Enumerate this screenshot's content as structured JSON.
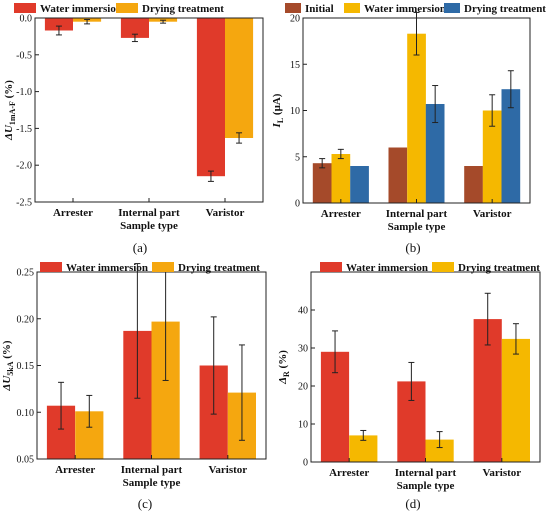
{
  "chart_data": [
    {
      "type": "bar",
      "panel": "a",
      "caption": "(a)",
      "categories": [
        "Arrester",
        "Internal part",
        "Varistor"
      ],
      "series": [
        {
          "name": "Water immersion",
          "color": "#e03a2a",
          "values": [
            -0.17,
            -0.27,
            -2.15
          ],
          "errors": [
            0.06,
            0.05,
            0.07
          ]
        },
        {
          "name": "Drying treatment",
          "color": "#f5a70f",
          "values": [
            -0.05,
            -0.05,
            -1.63
          ],
          "errors": [
            0.03,
            0.02,
            0.07
          ]
        }
      ],
      "xlabel": "Sample type",
      "ylabel": "ΔU1mA-F (%)",
      "ylabel_main": "ΔU",
      "ylabel_sub": "1mA-F",
      "ylabel_unit": " (%)",
      "ylim": [
        -2.5,
        0.0
      ],
      "yticks": [
        "0.0",
        "-0.5",
        "-1.0",
        "-1.5",
        "-2.0",
        "-2.5"
      ],
      "legend": "top-outside",
      "grid": false
    },
    {
      "type": "bar",
      "panel": "b",
      "caption": "(b)",
      "categories": [
        "Arrester",
        "Internal part",
        "Varistor"
      ],
      "series": [
        {
          "name": "Initial",
          "color": "#a54a2a",
          "values": [
            4.3,
            6.0,
            4.0
          ],
          "errors": [
            0.5,
            0,
            0
          ]
        },
        {
          "name": "Water immersion",
          "color": "#f5b800",
          "values": [
            5.3,
            18.3,
            10.0
          ],
          "errors": [
            0.5,
            2.3,
            1.7
          ]
        },
        {
          "name": "Drying treatment",
          "color": "#2e6aa6",
          "values": [
            4.0,
            10.7,
            12.3
          ],
          "errors": [
            0,
            2.0,
            2.0
          ]
        }
      ],
      "xlabel": "Sample type",
      "ylabel": "IL (μA)",
      "ylabel_main": "I",
      "ylabel_sub": "L",
      "ylabel_unit": " (μA)",
      "ylim": [
        0,
        20
      ],
      "yticks": [
        "0",
        "5",
        "10",
        "15",
        "20"
      ],
      "legend": "top-outside",
      "grid": false
    },
    {
      "type": "bar",
      "panel": "c",
      "caption": "(c)",
      "categories": [
        "Arrester",
        "Internal part",
        "Varistor"
      ],
      "series": [
        {
          "name": "Water immersion",
          "color": "#e03a2a",
          "values": [
            0.107,
            0.187,
            0.15
          ],
          "errors": [
            0.025,
            0.072,
            0.052
          ]
        },
        {
          "name": "Drying treatment",
          "color": "#f5a70f",
          "values": [
            0.101,
            0.197,
            0.121
          ],
          "errors": [
            0.017,
            0.063,
            0.051
          ]
        }
      ],
      "xlabel": "Sample type",
      "ylabel": "ΔU5kA (%)",
      "ylabel_main": "ΔU",
      "ylabel_sub": "5kA",
      "ylabel_unit": " (%)",
      "ylim": [
        0.05,
        0.25
      ],
      "yticks": [
        "0.05",
        "0.10",
        "0.15",
        "0.20",
        "0.25"
      ],
      "legend": "top-outside",
      "grid": false
    },
    {
      "type": "bar",
      "panel": "d",
      "caption": "(d)",
      "categories": [
        "Arrester",
        "Internal part",
        "Varistor"
      ],
      "series": [
        {
          "name": "Water immersion",
          "color": "#e03a2a",
          "values": [
            29.0,
            21.2,
            37.6
          ],
          "errors": [
            5.5,
            5.0,
            6.8
          ]
        },
        {
          "name": "Drying treatment",
          "color": "#f5b800",
          "values": [
            7.0,
            5.9,
            32.4
          ],
          "errors": [
            1.3,
            2.1,
            4.0
          ]
        }
      ],
      "xlabel": "Sample type",
      "ylabel": "ΔR (%)",
      "ylabel_main": "Δ",
      "ylabel_sub": "R",
      "ylabel_unit": " (%)",
      "ylim": [
        0,
        50
      ],
      "yticks": [
        "0",
        "10",
        "20",
        "30",
        "40"
      ],
      "legend": "top-outside",
      "grid": false
    }
  ]
}
